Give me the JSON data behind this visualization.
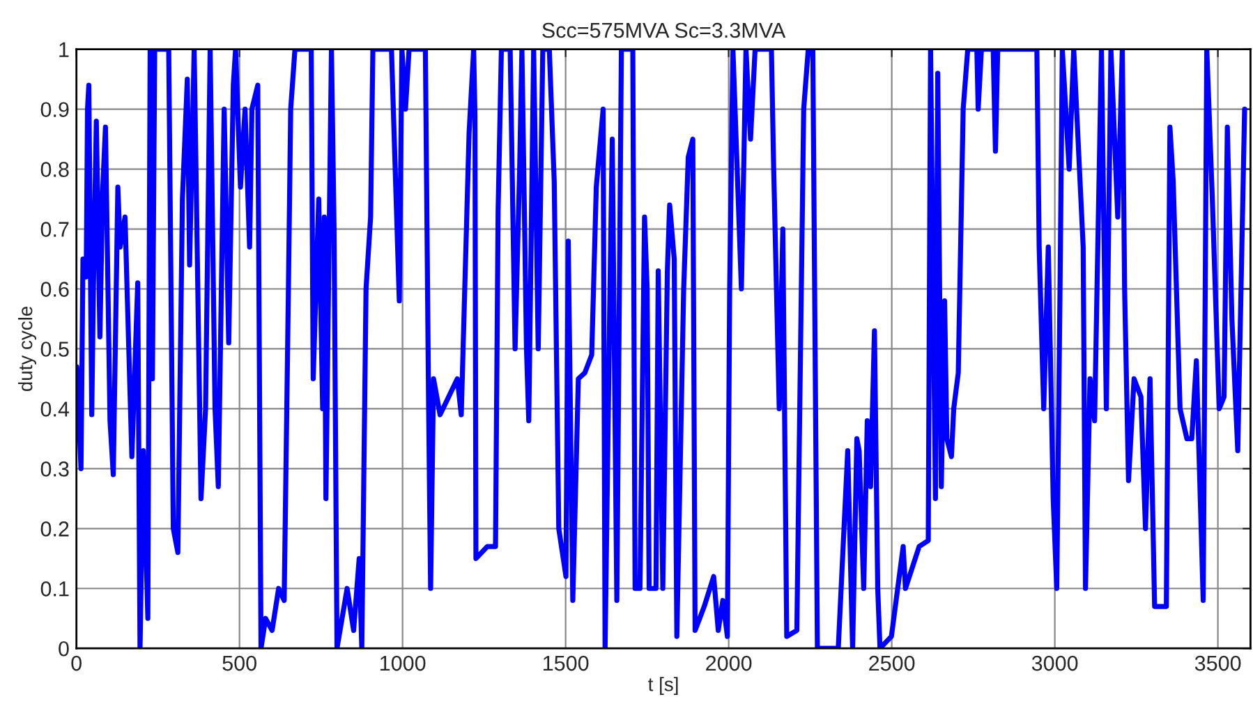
{
  "chart_data": {
    "type": "line",
    "title": "Scc=575MVA Sc=3.3MVA",
    "xlabel": "t [s]",
    "ylabel": "duty cycle",
    "xlim": [
      0,
      3600
    ],
    "xticks": [
      0,
      500,
      1000,
      1500,
      2000,
      2500,
      3000,
      3500
    ],
    "ylim": [
      0,
      1
    ],
    "yticks": [
      0,
      0.1,
      0.2,
      0.3,
      0.4,
      0.5,
      0.6,
      0.7,
      0.8,
      0.9,
      1
    ],
    "grid": true,
    "line_style": "solid",
    "marker": "none",
    "series": [
      {
        "color": "#0000ff",
        "x": [
          1,
          14,
          20,
          30,
          34,
          38,
          47,
          52,
          61,
          72,
          80,
          89,
          103,
          113,
          127,
          134,
          149,
          170,
          188,
          195,
          205,
          219,
          226,
          233,
          240,
          283,
          297,
          311,
          325,
          340,
          347,
          361,
          368,
          382,
          396,
          410,
          425,
          435,
          453,
          467,
          481,
          488,
          503,
          517,
          531,
          538,
          556,
          566,
          580,
          600,
          620,
          637,
          650,
          657,
          670,
          720,
          726,
          743,
          755,
          760,
          765,
          782,
          790,
          799,
          830,
          850,
          867,
          875,
          888,
          902,
          909,
          966,
          990,
          998,
          1009,
          1020,
          1070,
          1080,
          1086,
          1095,
          1115,
          1168,
          1180,
          1204,
          1218,
          1222,
          1225,
          1260,
          1285,
          1293,
          1303,
          1330,
          1345,
          1359,
          1366,
          1380,
          1387,
          1402,
          1416,
          1430,
          1450,
          1465,
          1479,
          1501,
          1508,
          1522,
          1539,
          1559,
          1580,
          1594,
          1615,
          1621,
          1636,
          1643,
          1657,
          1671,
          1706,
          1713,
          1728,
          1742,
          1750,
          1756,
          1777,
          1784,
          1798,
          1812,
          1819,
          1833,
          1841,
          1862,
          1876,
          1890,
          1897,
          1925,
          1954,
          1968,
          1982,
          1996,
          2003,
          2013,
          2039,
          2053,
          2067,
          2081,
          2131,
          2138,
          2155,
          2166,
          2178,
          2209,
          2230,
          2244,
          2258,
          2272,
          2336,
          2365,
          2380,
          2393,
          2400,
          2414,
          2425,
          2435,
          2447,
          2457,
          2464,
          2499,
          2535,
          2542,
          2584,
          2612,
          2619,
          2634,
          2641,
          2652,
          2662,
          2669,
          2683,
          2690,
          2704,
          2719,
          2733,
          2761,
          2765,
          2775,
          2811,
          2818,
          2825,
          2945,
          2952,
          2966,
          2980,
          2995,
          3006,
          3016,
          3023,
          3044,
          3058,
          3087,
          3094,
          3108,
          3122,
          3143,
          3158,
          3172,
          3193,
          3207,
          3214,
          3226,
          3243,
          3264,
          3278,
          3292,
          3306,
          3342,
          3353,
          3363,
          3384,
          3405,
          3420,
          3434,
          3455,
          3466,
          3483,
          3504,
          3519,
          3529,
          3543,
          3561,
          3571,
          3582
        ],
        "values": [
          0.47,
          0.3,
          0.65,
          0.62,
          0.9,
          0.94,
          0.39,
          0.6,
          0.88,
          0.52,
          0.76,
          0.87,
          0.38,
          0.29,
          0.77,
          0.67,
          0.72,
          0.32,
          0.61,
          0.0,
          0.33,
          0.05,
          1.0,
          0.45,
          1.0,
          1.0,
          0.2,
          0.16,
          0.75,
          0.95,
          0.64,
          1.0,
          0.75,
          0.25,
          0.4,
          1.0,
          0.4,
          0.27,
          0.9,
          0.51,
          0.94,
          1.0,
          0.77,
          0.9,
          0.67,
          0.9,
          0.94,
          0.0,
          0.05,
          0.03,
          0.1,
          0.08,
          0.6,
          0.9,
          1.0,
          1.0,
          0.45,
          0.75,
          0.4,
          0.72,
          0.25,
          1.0,
          0.7,
          0.0,
          0.1,
          0.03,
          0.15,
          0.0,
          0.6,
          0.72,
          1.0,
          1.0,
          0.58,
          1.0,
          0.9,
          1.0,
          1.0,
          0.4,
          0.1,
          0.45,
          0.39,
          0.45,
          0.39,
          0.86,
          1.0,
          0.89,
          0.15,
          0.17,
          0.17,
          0.73,
          1.0,
          1.0,
          0.5,
          0.8,
          1.0,
          0.5,
          0.38,
          1.0,
          0.5,
          1.0,
          1.0,
          0.78,
          0.2,
          0.12,
          0.68,
          0.08,
          0.45,
          0.46,
          0.49,
          0.77,
          0.9,
          0.0,
          0.6,
          0.85,
          0.08,
          1.0,
          1.0,
          0.1,
          0.1,
          0.72,
          0.6,
          0.1,
          0.1,
          0.63,
          0.1,
          0.63,
          0.74,
          0.65,
          0.02,
          0.6,
          0.82,
          0.85,
          0.03,
          0.07,
          0.12,
          0.03,
          0.08,
          0.02,
          0.6,
          1.0,
          0.6,
          1.0,
          0.85,
          1.0,
          1.0,
          0.8,
          0.4,
          0.7,
          0.02,
          0.03,
          0.9,
          1.0,
          1.0,
          0.0,
          0.0,
          0.33,
          0.0,
          0.35,
          0.33,
          0.1,
          0.38,
          0.27,
          0.53,
          0.1,
          0.0,
          0.02,
          0.17,
          0.1,
          0.17,
          0.18,
          1.0,
          0.25,
          0.96,
          0.27,
          0.58,
          0.35,
          0.32,
          0.4,
          0.46,
          0.9,
          1.0,
          1.0,
          0.9,
          1.0,
          1.0,
          0.83,
          1.0,
          1.0,
          0.67,
          0.4,
          0.67,
          0.25,
          0.1,
          0.6,
          1.0,
          0.8,
          1.0,
          0.67,
          0.1,
          0.45,
          0.38,
          1.0,
          0.4,
          1.0,
          0.72,
          1.0,
          0.6,
          0.28,
          0.45,
          0.42,
          0.2,
          0.45,
          0.07,
          0.07,
          0.87,
          0.78,
          0.4,
          0.35,
          0.35,
          0.48,
          0.08,
          1.0,
          0.75,
          0.4,
          0.42,
          0.87,
          0.55,
          0.33,
          0.6,
          0.9
        ]
      }
    ]
  }
}
